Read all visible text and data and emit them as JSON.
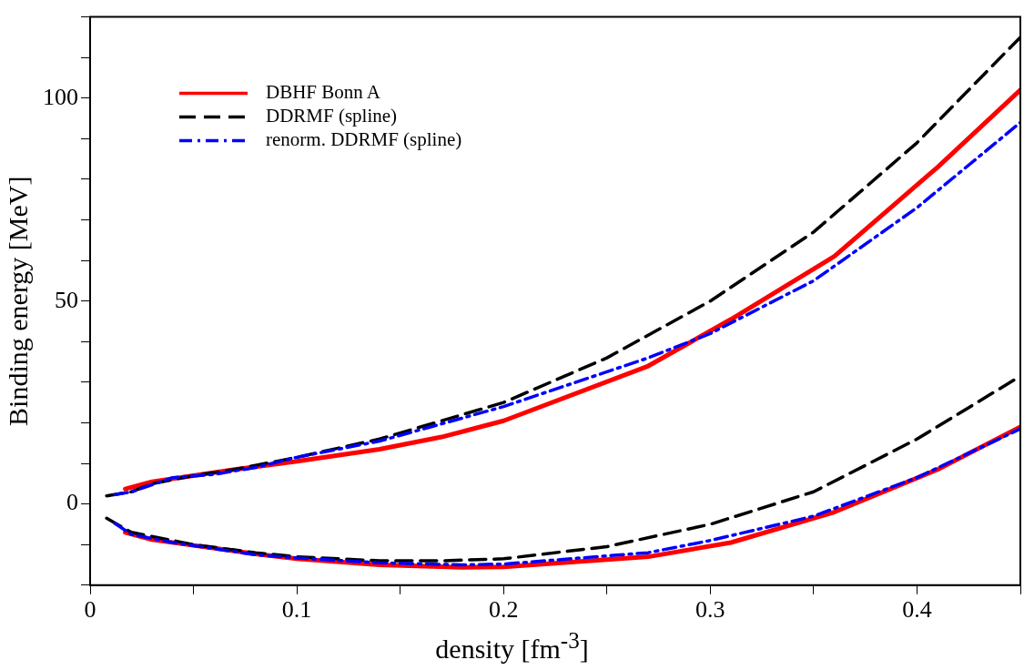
{
  "chart_data": {
    "type": "line",
    "xlabel": "density [fm$^{-3}$]",
    "ylabel": "Binding energy [MeV]",
    "xlim": [
      0,
      0.45
    ],
    "xticks": [
      0,
      {
        "value": 0.05,
        "label": null
      },
      0.1,
      {
        "value": 0.15,
        "label": null
      },
      0.2,
      {
        "value": 0.25,
        "label": null
      },
      0.3,
      {
        "value": 0.35,
        "label": null
      },
      0.4,
      {
        "value": 0.45,
        "label": null
      }
    ],
    "ylim": [
      -20,
      120
    ],
    "yticks": [
      {
        "value": -20,
        "label": null
      },
      {
        "value": -10,
        "label": null
      },
      0,
      {
        "value": 10,
        "label": null
      },
      {
        "value": 20,
        "label": null
      },
      {
        "value": 30,
        "label": null
      },
      {
        "value": 40,
        "label": null
      },
      50,
      {
        "value": 60,
        "label": null
      },
      {
        "value": 70,
        "label": null
      },
      {
        "value": 80,
        "label": null
      },
      {
        "value": 90,
        "label": null
      },
      100,
      {
        "value": 110,
        "label": null
      },
      {
        "value": 120,
        "label": null
      }
    ],
    "grid": false,
    "legend": "top left",
    "marker": "none",
    "series": [
      {
        "name": "DBHF Bonn A",
        "color": "#ff0000",
        "line_style": "solid",
        "x": [
          0.017,
          0.03,
          0.05,
          0.07,
          0.1,
          0.14,
          0.17,
          0.2,
          0.27,
          0.31,
          0.36,
          0.41,
          0.45
        ],
        "values": [
          3.7,
          5.5,
          7,
          8.5,
          10.5,
          13.5,
          16.5,
          20.5,
          34,
          45.5,
          61,
          83,
          102
        ]
      },
      {
        "name": "DDRMF (spline)",
        "color": "#000000",
        "line_style": "dashed",
        "x": [
          0.008,
          0.02,
          0.03,
          0.05,
          0.07,
          0.1,
          0.14,
          0.2,
          0.25,
          0.3,
          0.35,
          0.4,
          0.45
        ],
        "values": [
          2,
          3,
          5,
          7,
          8.5,
          11.5,
          16,
          25,
          36,
          50,
          67,
          89,
          115
        ]
      },
      {
        "name": "renorm. DDRMF (spline)",
        "color": "#0000ff",
        "line_style": "dashdot",
        "x": [
          0.012,
          0.02,
          0.04,
          0.06,
          0.08,
          0.1,
          0.14,
          0.2,
          0.27,
          0.3,
          0.35,
          0.4,
          0.45
        ],
        "values": [
          2.3,
          3,
          6.5,
          7.3,
          9,
          11.5,
          15.5,
          24,
          36,
          42,
          55,
          73,
          94
        ]
      },
      {
        "color": "#ff0000",
        "line_style": "solid",
        "x": [
          0.017,
          0.03,
          0.05,
          0.08,
          0.1,
          0.14,
          0.18,
          0.2,
          0.27,
          0.31,
          0.36,
          0.41,
          0.45
        ],
        "values": [
          -7,
          -8.8,
          -10.2,
          -12.3,
          -13.5,
          -15,
          -15.6,
          -15.5,
          -13,
          -9.5,
          -2,
          8.5,
          19
        ]
      },
      {
        "color": "#000000",
        "line_style": "dashed",
        "x": [
          0.008,
          0.02,
          0.05,
          0.08,
          0.1,
          0.14,
          0.17,
          0.2,
          0.25,
          0.3,
          0.35,
          0.4,
          0.45
        ],
        "values": [
          -3.5,
          -7,
          -10,
          -12,
          -13,
          -14,
          -14,
          -13.5,
          -10.5,
          -5,
          3,
          16,
          31.5
        ]
      },
      {
        "color": "#0000ff",
        "line_style": "dashdot",
        "x": [
          0.012,
          0.02,
          0.04,
          0.08,
          0.1,
          0.14,
          0.18,
          0.2,
          0.27,
          0.3,
          0.35,
          0.4,
          0.45
        ],
        "values": [
          -4.8,
          -7.5,
          -9.5,
          -12.5,
          -13.3,
          -14.5,
          -15,
          -14.8,
          -12,
          -9,
          -3,
          6.5,
          18.5
        ]
      }
    ]
  }
}
